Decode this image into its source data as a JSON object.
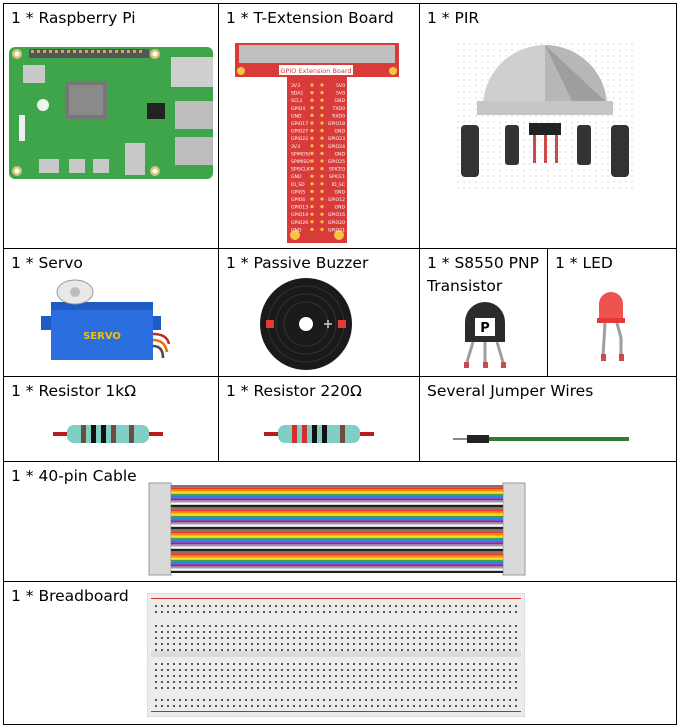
{
  "components": {
    "rpi": "1 * Raspberry Pi",
    "textension": "1 * T-Extension Board",
    "pir": "1 * PIR",
    "servo": "1 * Servo",
    "buzzer": "1 * Passive Buzzer",
    "transistor_line1": "1 * S8550 PNP",
    "transistor_line2": "Transistor",
    "led": "1 * LED",
    "res1k": "1 * Resistor 1kΩ",
    "res220": "1 * Resistor 220Ω",
    "jumper": "Several Jumper Wires",
    "cable": "1 * 40-pin Cable",
    "breadboard": "1 * Breadboard"
  },
  "images": {
    "textension_header": "GPIO Extension Board",
    "textension_pins_left": [
      "3V3",
      "SDA1",
      "SCL1",
      "GPIO4",
      "GND",
      "GPIO17",
      "GPIO27",
      "GPIO22",
      "3V3",
      "SPIMOSI",
      "SPIMISO",
      "SPISCLK",
      "GND",
      "ID_SD",
      "GPIO5",
      "GPIO6",
      "GPIO13",
      "GPIO19",
      "GPIO26",
      "GND"
    ],
    "textension_pins_right": [
      "5V0",
      "5V0",
      "GND",
      "TXD0",
      "RXD0",
      "GPIO18",
      "GND",
      "GPIO23",
      "GPIO24",
      "GND",
      "GPIO25",
      "SPICE0",
      "SPICE1",
      "ID_SC",
      "GND",
      "GPIO12",
      "GND",
      "GPIO16",
      "GPIO20",
      "GPIO21"
    ],
    "servo_text": "SERVO",
    "transistor_mark": "P"
  }
}
